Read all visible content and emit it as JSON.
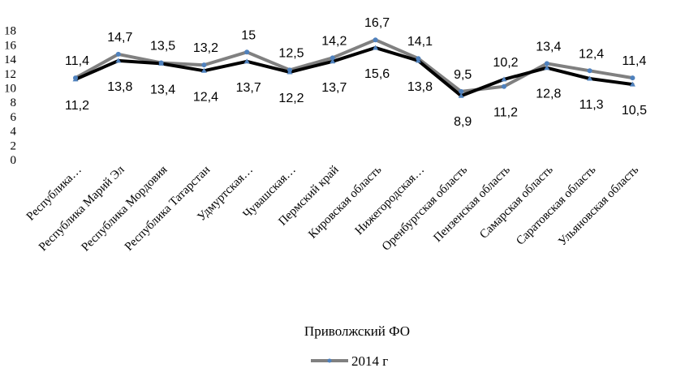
{
  "chart_data": {
    "type": "line",
    "xlabel": "Приволжский ФО",
    "ylabel": "",
    "ylim": [
      0,
      18
    ],
    "yticks": [
      0,
      2,
      4,
      6,
      8,
      10,
      12,
      14,
      16,
      18
    ],
    "grid": false,
    "legend_position": "bottom",
    "categories": [
      "Республика…",
      "Республика Марий Эл",
      "Республика Мордовия",
      "Республика Татарстан",
      "Удмуртская…",
      "Чувашская…",
      "Пермский край",
      "Кировская область",
      "Нижегородская…",
      "Оренбургская область",
      "Пензенская область",
      "Самарская область",
      "Саратовская область",
      "Ульяновская область"
    ],
    "series": [
      {
        "name": "2014 г",
        "color": "#808080",
        "values": [
          11.4,
          14.7,
          13.5,
          13.2,
          15,
          12.5,
          14.2,
          16.7,
          14.1,
          9.5,
          10.2,
          13.4,
          12.4,
          11.4
        ],
        "labels": [
          "11,4",
          "14,7",
          "13,5",
          "13,2",
          "15",
          "12,5",
          "14,2",
          "16,7",
          "14,1",
          "9,5",
          "10,2",
          "13,4",
          "12,4",
          "11,4"
        ]
      },
      {
        "name": "",
        "color": "#000000",
        "values": [
          11.2,
          13.8,
          13.4,
          12.4,
          13.7,
          12.2,
          13.7,
          15.6,
          13.8,
          8.9,
          11.2,
          12.8,
          11.3,
          10.5
        ],
        "labels": [
          "11,2",
          "13,8",
          "13,4",
          "12,4",
          "13,7",
          "12,2",
          "13,7",
          "15,6",
          "13,8",
          "8,9",
          "11,2",
          "12,8",
          "11,3",
          "10,5"
        ]
      }
    ],
    "marker_color": "#4f81bd"
  }
}
